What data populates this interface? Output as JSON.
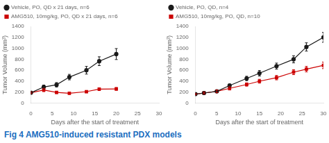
{
  "chart_data": [
    {
      "type": "line",
      "annotations": [
        {
          "text": "Fig 4 AMG510-induced resistant PDX models",
          "color": "#1a6ebf"
        }
      ],
      "x_label": "Days after the start of treatment",
      "y_label": "Tumor Volume (mm³)",
      "x": [
        0,
        3,
        6,
        9,
        13,
        16,
        20
      ],
      "series": [
        {
          "name": "Vehicle, PO, QD x 21 days, n=6",
          "color": "#1a1a1a",
          "marker": "circle",
          "values": [
            190,
            295,
            335,
            475,
            600,
            765,
            895
          ],
          "errors": [
            15,
            35,
            40,
            50,
            70,
            80,
            100
          ]
        },
        {
          "name": "AMG510, 10mg/kg, PO, QD x 21 days, n=6",
          "color": "#cc0000",
          "marker": "square",
          "values": [
            190,
            240,
            195,
            180,
            210,
            255,
            260
          ],
          "errors": [
            15,
            30,
            20,
            15,
            20,
            25,
            25
          ]
        }
      ],
      "xlim": [
        0,
        30
      ],
      "xticks": [
        0,
        5,
        10,
        15,
        20,
        25,
        30
      ],
      "ylim": [
        0,
        1400
      ],
      "yticks": [
        0,
        200,
        400,
        600,
        800,
        1000,
        1200,
        1400
      ],
      "grid": false,
      "legend": "upper left"
    },
    {
      "type": "line",
      "x_label": "Days after the start of treatment",
      "y_label": "Tumor Volume (mm³)",
      "x": [
        0,
        2,
        5,
        8,
        12,
        15,
        19,
        23,
        26,
        30
      ],
      "series": [
        {
          "name": "Vehicle, PO, QD, n=4",
          "color": "#1a1a1a",
          "marker": "circle",
          "values": [
            165,
            185,
            215,
            320,
            450,
            545,
            675,
            800,
            1025,
            1200
          ],
          "errors": [
            10,
            15,
            20,
            30,
            40,
            50,
            55,
            65,
            75,
            90
          ]
        },
        {
          "name": "AMG510, 10mg/kg, PO, QD, n=10",
          "color": "#cc0000",
          "marker": "square",
          "values": [
            165,
            185,
            215,
            270,
            340,
            400,
            465,
            565,
            620,
            690
          ],
          "errors": [
            10,
            15,
            25,
            30,
            30,
            35,
            40,
            45,
            50,
            60
          ]
        }
      ],
      "xlim": [
        0,
        30
      ],
      "xticks": [
        0,
        5,
        10,
        15,
        20,
        25,
        30
      ],
      "ylim": [
        0,
        1400
      ],
      "yticks": [
        0,
        200,
        400,
        600,
        800,
        1000,
        1200,
        1400
      ],
      "grid": false,
      "legend": "upper left"
    }
  ]
}
